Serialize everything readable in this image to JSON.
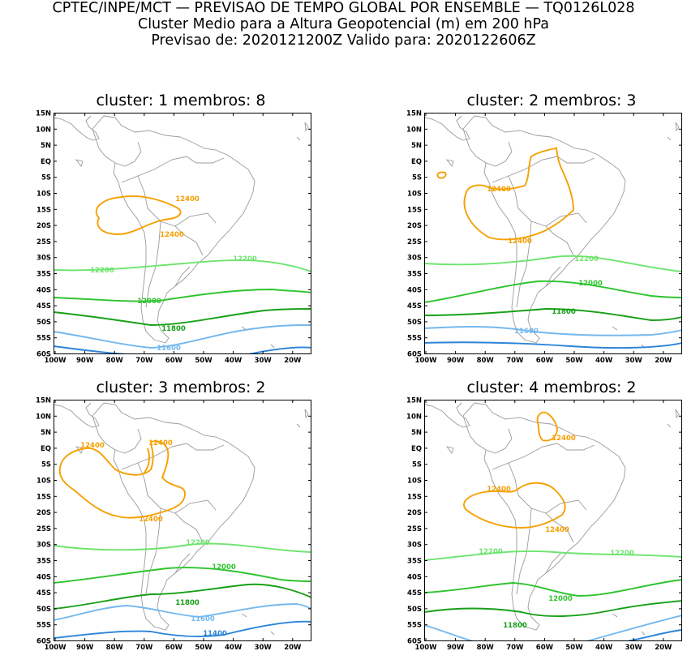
{
  "header": {
    "line1": "CPTEC/INPE/MCT — PREVISAO DE TEMPO GLOBAL POR ENSEMBLE — TQ0126L028",
    "line2": "Cluster Medio para a Altura Geopotencial (m) em 200 hPa",
    "line3": "Previsao de: 2020121200Z    Valido para: 2020122606Z"
  },
  "axes": {
    "lat_labels": [
      "15N",
      "10N",
      "5N",
      "EQ",
      "5S",
      "10S",
      "15S",
      "20S",
      "25S",
      "30S",
      "35S",
      "40S",
      "45S",
      "50S",
      "55S",
      "60S"
    ],
    "lon_labels": [
      "100W",
      "90W",
      "80W",
      "70W",
      "60W",
      "50W",
      "40W",
      "30W",
      "20W"
    ]
  },
  "colors": {
    "c12400": "#f5a000",
    "c12200": "#6ee46e",
    "c12000": "#2ec42e",
    "c11800": "#16a016",
    "c11600": "#74b8ee",
    "c11400": "#2c84d8"
  },
  "panels": [
    {
      "title": "cluster: 1   membros: 8",
      "labels": [
        {
          "text": "12400",
          "color": "#f5a000",
          "x": 165,
          "y": 106
        },
        {
          "text": "12400",
          "color": "#f5a000",
          "x": 146,
          "y": 150
        },
        {
          "text": "12200",
          "color": "#6ee46e",
          "x": 60,
          "y": 194
        },
        {
          "text": "12200",
          "color": "#6ee46e",
          "x": 236,
          "y": 180
        },
        {
          "text": "12000",
          "color": "#2ec42e",
          "x": 118,
          "y": 232
        },
        {
          "text": "11800",
          "color": "#16a016",
          "x": 148,
          "y": 266
        },
        {
          "text": "11600",
          "color": "#74b8ee",
          "x": 142,
          "y": 290
        }
      ]
    },
    {
      "title": "cluster: 2   membros: 3",
      "labels": [
        {
          "text": "12400",
          "color": "#f5a000",
          "x": 92,
          "y": 94
        },
        {
          "text": "12400",
          "color": "#f5a000",
          "x": 118,
          "y": 158
        },
        {
          "text": "12200",
          "color": "#6ee46e",
          "x": 200,
          "y": 180
        },
        {
          "text": "12000",
          "color": "#2ec42e",
          "x": 205,
          "y": 210
        },
        {
          "text": "11800",
          "color": "#16a016",
          "x": 172,
          "y": 245
        },
        {
          "text": "11600",
          "color": "#74b8ee",
          "x": 126,
          "y": 269
        }
      ]
    },
    {
      "title": "cluster: 3   membros: 2",
      "labels": [
        {
          "text": "12400",
          "color": "#f5a000",
          "x": 48,
          "y": 56
        },
        {
          "text": "12400",
          "color": "#f5a000",
          "x": 132,
          "y": 53
        },
        {
          "text": "12400",
          "color": "#f5a000",
          "x": 120,
          "y": 147
        },
        {
          "text": "12200",
          "color": "#6ee46e",
          "x": 178,
          "y": 176
        },
        {
          "text": "12000",
          "color": "#2ec42e",
          "x": 210,
          "y": 206
        },
        {
          "text": "11800",
          "color": "#16a016",
          "x": 165,
          "y": 250
        },
        {
          "text": "11600",
          "color": "#74b8ee",
          "x": 184,
          "y": 270
        },
        {
          "text": "11400",
          "color": "#2c84d8",
          "x": 199,
          "y": 288
        }
      ]
    },
    {
      "title": "cluster: 4   membros: 2",
      "labels": [
        {
          "text": "12400",
          "color": "#f5a000",
          "x": 172,
          "y": 47
        },
        {
          "text": "12400",
          "color": "#f5a000",
          "x": 92,
          "y": 110
        },
        {
          "text": "12400",
          "color": "#f5a000",
          "x": 164,
          "y": 160
        },
        {
          "text": "12200",
          "color": "#6ee46e",
          "x": 82,
          "y": 187
        },
        {
          "text": "12200",
          "color": "#6ee46e",
          "x": 244,
          "y": 189
        },
        {
          "text": "12000",
          "color": "#2ec42e",
          "x": 168,
          "y": 245
        },
        {
          "text": "11800",
          "color": "#16a016",
          "x": 112,
          "y": 278
        }
      ]
    }
  ]
}
